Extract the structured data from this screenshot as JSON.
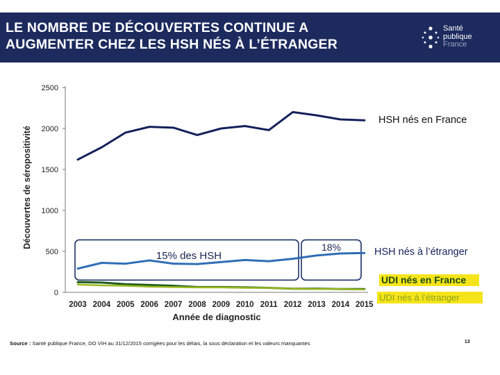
{
  "header": {
    "title_line1": "LE NOMBRE DE DÉCOUVERTES CONTINUE A",
    "title_line2": "AUGMENTER CHEZ LES HSH NÉS À L’ÉTRANGER",
    "logo": {
      "line1": "Santé",
      "line2": "publique",
      "line3": "France"
    }
  },
  "chart_data": {
    "type": "line",
    "xlabel": "Année de diagnostic",
    "ylabel": "Découvertes de séropositivité",
    "ylim": [
      0,
      2500
    ],
    "yticks": [
      0,
      500,
      1000,
      1500,
      2000,
      2500
    ],
    "x": [
      "2003",
      "2004",
      "2005",
      "2006",
      "2007",
      "2008",
      "2009",
      "2010",
      "2011",
      "2012",
      "2013",
      "2014",
      "2015"
    ],
    "series": [
      {
        "name": "HSH nés en France",
        "color": "#14205a",
        "values": [
          1620,
          1770,
          1950,
          2020,
          2010,
          1920,
          2000,
          2030,
          1980,
          2200,
          2160,
          2110,
          2100
        ]
      },
      {
        "name": "HSH nés à l’étranger",
        "color": "#2f6db5",
        "values": [
          290,
          360,
          350,
          390,
          350,
          345,
          370,
          395,
          380,
          410,
          450,
          475,
          480
        ]
      },
      {
        "name": "UDI nés en France",
        "color": "#1c5a1c",
        "values": [
          125,
          120,
          100,
          90,
          80,
          65,
          65,
          60,
          55,
          45,
          45,
          40,
          40
        ]
      },
      {
        "name": "UDI nés à l’étranger",
        "color": "#9ab820",
        "values": [
          95,
          85,
          80,
          70,
          65,
          60,
          60,
          55,
          55,
          45,
          40,
          40,
          35
        ]
      }
    ],
    "annotations": [
      {
        "text": "15% des HSH",
        "from": "2003",
        "to": "2011"
      },
      {
        "text": "18%",
        "from": "2012",
        "to": "2015"
      }
    ]
  },
  "footer": {
    "source_label": "Source :",
    "source_text": "Santé publique France, DO VIH au 31/12/2015 corrigées pour les délais, la sous déclaration et les valeurs manquantes",
    "page_number": "13"
  }
}
